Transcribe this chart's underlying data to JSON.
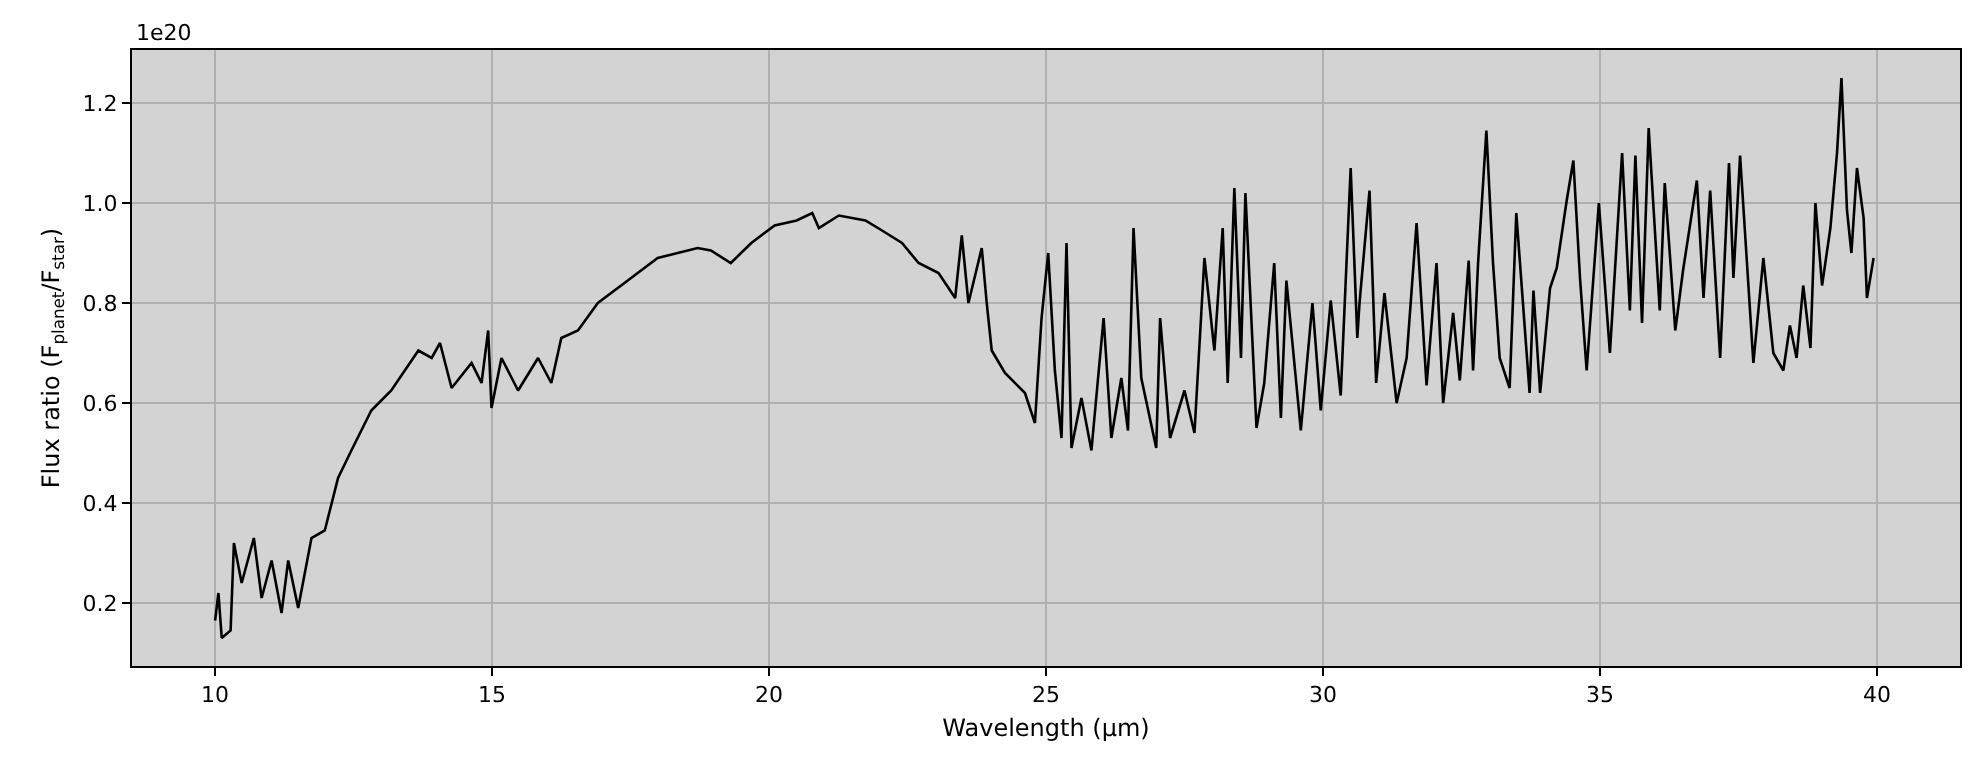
{
  "chart_data": {
    "type": "line",
    "xlabel": "Wavelength (μm)",
    "ylabel": "Flux ratio (F$_{planet}$/F$_{star}$)",
    "annotations": [
      "1e20"
    ],
    "xlim": [
      8.5,
      41.5
    ],
    "xticks": [
      10,
      15,
      20,
      25,
      30,
      35,
      40
    ],
    "ylim": [
      0.074,
      1.306
    ],
    "yticks": [
      0.2,
      0.4,
      0.6,
      0.8,
      {
        "value": 1,
        "label": "1.0"
      },
      1.2
    ],
    "grid": true,
    "marker": "none",
    "line_style": "solid",
    "series": [
      {
        "color": "#000000",
        "x": [
          10.0,
          10.06,
          10.12,
          10.28,
          10.34,
          10.48,
          10.7,
          10.84,
          11.02,
          11.2,
          11.32,
          11.5,
          11.74,
          11.98,
          12.22,
          12.46,
          12.82,
          13.18,
          13.67,
          13.91,
          14.06,
          14.27,
          14.63,
          14.81,
          14.93,
          14.99,
          15.17,
          15.47,
          15.83,
          16.07,
          16.25,
          16.55,
          16.91,
          17.39,
          17.99,
          18.71,
          18.95,
          19.31,
          19.68,
          20.1,
          20.5,
          20.78,
          20.9,
          21.26,
          21.74,
          22.04,
          22.4,
          22.7,
          23.06,
          23.36,
          23.48,
          23.6,
          23.84,
          23.93,
          24.02,
          24.26,
          24.62,
          24.8,
          24.92,
          25.04,
          25.16,
          25.28,
          25.37,
          25.46,
          25.64,
          25.82,
          26.04,
          26.18,
          26.36,
          26.48,
          26.58,
          26.72,
          26.99,
          27.06,
          27.24,
          27.5,
          27.68,
          27.86,
          28.04,
          28.19,
          28.28,
          28.4,
          28.52,
          28.6,
          28.8,
          28.94,
          29.12,
          29.24,
          29.34,
          29.6,
          29.81,
          29.96,
          30.14,
          30.32,
          30.5,
          30.62,
          30.66,
          30.84,
          30.96,
          31.11,
          31.33,
          31.51,
          31.69,
          31.87,
          32.05,
          32.17,
          32.35,
          32.47,
          32.63,
          32.71,
          32.8,
          32.95,
          33.07,
          33.19,
          33.37,
          33.49,
          33.73,
          33.8,
          33.92,
          34.1,
          34.22,
          34.4,
          34.52,
          34.64,
          34.76,
          34.98,
          35.18,
          35.4,
          35.54,
          35.64,
          35.76,
          35.88,
          36.08,
          36.17,
          36.36,
          36.5,
          36.75,
          36.87,
          36.99,
          37.17,
          37.33,
          37.41,
          37.53,
          37.77,
          37.95,
          38.13,
          38.31,
          38.43,
          38.55,
          38.67,
          38.8,
          38.89,
          39.01,
          39.16,
          39.28,
          39.36,
          39.46,
          39.54,
          39.64,
          39.76,
          39.82,
          39.94
        ],
        "values": [
          0.165,
          0.22,
          0.13,
          0.145,
          0.32,
          0.24,
          0.33,
          0.21,
          0.285,
          0.18,
          0.285,
          0.19,
          0.33,
          0.345,
          0.45,
          0.505,
          0.585,
          0.625,
          0.705,
          0.69,
          0.72,
          0.63,
          0.68,
          0.64,
          0.745,
          0.59,
          0.69,
          0.625,
          0.69,
          0.64,
          0.73,
          0.745,
          0.8,
          0.84,
          0.89,
          0.91,
          0.905,
          0.88,
          0.92,
          0.955,
          0.965,
          0.98,
          0.95,
          0.975,
          0.965,
          0.945,
          0.92,
          0.88,
          0.86,
          0.81,
          0.935,
          0.8,
          0.91,
          0.8,
          0.705,
          0.66,
          0.62,
          0.56,
          0.77,
          0.9,
          0.665,
          0.53,
          0.92,
          0.51,
          0.61,
          0.505,
          0.77,
          0.53,
          0.65,
          0.545,
          0.95,
          0.65,
          0.51,
          0.77,
          0.53,
          0.625,
          0.54,
          0.89,
          0.705,
          0.95,
          0.64,
          1.03,
          0.69,
          1.02,
          0.55,
          0.64,
          0.88,
          0.57,
          0.845,
          0.545,
          0.8,
          0.585,
          0.805,
          0.615,
          1.07,
          0.73,
          0.8,
          1.025,
          0.64,
          0.82,
          0.6,
          0.69,
          0.96,
          0.635,
          0.88,
          0.6,
          0.78,
          0.645,
          0.885,
          0.665,
          0.88,
          1.145,
          0.88,
          0.69,
          0.63,
          0.98,
          0.62,
          0.825,
          0.62,
          0.83,
          0.87,
          1.005,
          1.085,
          0.85,
          0.665,
          1.0,
          0.7,
          1.1,
          0.785,
          1.095,
          0.76,
          1.15,
          0.785,
          1.04,
          0.745,
          0.865,
          1.045,
          0.81,
          1.025,
          0.69,
          1.08,
          0.85,
          1.095,
          0.68,
          0.89,
          0.7,
          0.665,
          0.755,
          0.69,
          0.835,
          0.71,
          1.0,
          0.835,
          0.95,
          1.1,
          1.25,
          0.985,
          0.9,
          1.07,
          0.97,
          0.81,
          0.89
        ]
      }
    ]
  }
}
